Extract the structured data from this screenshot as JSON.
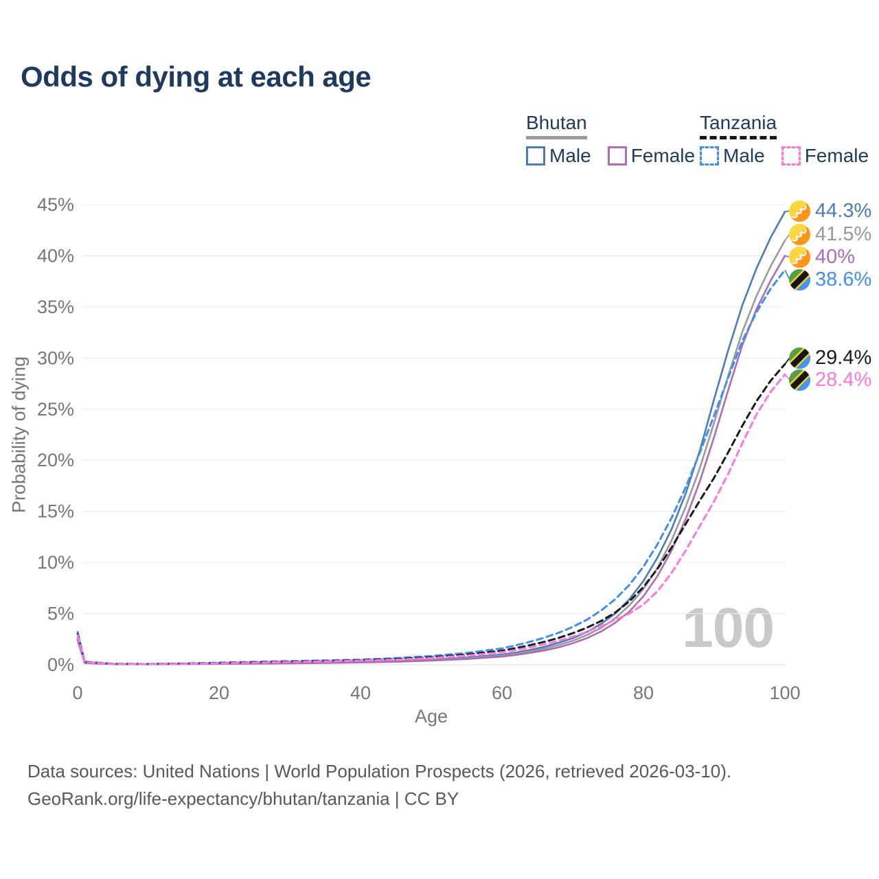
{
  "title": "Odds of dying at each age",
  "legend": {
    "groups": [
      {
        "label": "Bhutan",
        "line_style": "solid",
        "line_color": "#9a9a9a",
        "items": [
          {
            "label": "Male",
            "color": "#4a7db8"
          },
          {
            "label": "Female",
            "color": "#ad6cb5"
          }
        ]
      },
      {
        "label": "Tanzania",
        "line_style": "dashed",
        "line_color": "#161616",
        "items": [
          {
            "label": "Male",
            "color": "#3f8df5"
          },
          {
            "label": "Female",
            "color": "#ff77dd"
          }
        ]
      }
    ]
  },
  "watermark": "100",
  "footer": {
    "line1": "Data sources: United Nations | World Population Prospects (2026, retrieved 2026-03-10).",
    "line2": "GeoRank.org/life-expectancy/bhutan/tanzania | CC BY"
  },
  "chart_data": {
    "type": "line",
    "title": "Odds of dying at each age",
    "xlabel": "Age",
    "ylabel": "Probability of dying",
    "xlim": [
      0,
      100
    ],
    "ylim": [
      0,
      45
    ],
    "grid": true,
    "x_ticks": [
      {
        "value": 0,
        "label": "0"
      },
      {
        "value": 20,
        "label": "20"
      },
      {
        "value": 40,
        "label": "40"
      },
      {
        "value": 60,
        "label": "60"
      },
      {
        "value": 80,
        "label": "80"
      },
      {
        "value": 100,
        "label": "100"
      }
    ],
    "y_ticks": [
      {
        "value": 0,
        "label": "0%"
      },
      {
        "value": 5,
        "label": "5%"
      },
      {
        "value": 10,
        "label": "10%"
      },
      {
        "value": 15,
        "label": "15%"
      },
      {
        "value": 20,
        "label": "20%"
      },
      {
        "value": 25,
        "label": "25%"
      },
      {
        "value": 30,
        "label": "30%"
      },
      {
        "value": 35,
        "label": "35%"
      },
      {
        "value": 40,
        "label": "40%"
      },
      {
        "value": 45,
        "label": "45%"
      }
    ],
    "ages": [
      0,
      1,
      5,
      10,
      15,
      20,
      25,
      30,
      35,
      40,
      45,
      50,
      55,
      60,
      62,
      64,
      66,
      68,
      70,
      72,
      74,
      76,
      78,
      80,
      82,
      84,
      86,
      88,
      90,
      92,
      94,
      96,
      98,
      100
    ],
    "series": [
      {
        "name": "Bhutan Male",
        "country": "bhutan",
        "icon": "bhutan-flag-icon",
        "color": "#4a7db8",
        "dashed": false,
        "end_label": "44.3%",
        "end_value": 44.3,
        "values": [
          2.6,
          0.2,
          0.07,
          0.06,
          0.08,
          0.12,
          0.15,
          0.18,
          0.22,
          0.28,
          0.37,
          0.5,
          0.7,
          1.0,
          1.2,
          1.45,
          1.75,
          2.15,
          2.6,
          3.2,
          4.0,
          5.0,
          6.4,
          8.2,
          10.5,
          13.3,
          16.8,
          21.0,
          26.0,
          30.8,
          35.2,
          38.8,
          41.8,
          44.3
        ]
      },
      {
        "name": "Bhutan",
        "country": "bhutan",
        "icon": "bhutan-flag-icon",
        "color": "#9a9a9a",
        "dashed": false,
        "end_label": "41.5%",
        "end_value": 41.5,
        "values": [
          2.5,
          0.18,
          0.06,
          0.055,
          0.07,
          0.1,
          0.13,
          0.16,
          0.2,
          0.25,
          0.33,
          0.45,
          0.63,
          0.9,
          1.08,
          1.3,
          1.58,
          1.92,
          2.35,
          2.9,
          3.6,
          4.55,
          5.8,
          7.4,
          9.5,
          12.2,
          15.5,
          19.3,
          23.7,
          28.3,
          32.6,
          36.1,
          39.0,
          41.5
        ]
      },
      {
        "name": "Bhutan Female",
        "country": "bhutan",
        "icon": "bhutan-flag-icon",
        "color": "#ad6cb5",
        "dashed": false,
        "end_label": "40%",
        "end_value": 40.0,
        "values": [
          2.4,
          0.17,
          0.055,
          0.05,
          0.06,
          0.09,
          0.11,
          0.14,
          0.17,
          0.22,
          0.29,
          0.4,
          0.56,
          0.8,
          0.96,
          1.16,
          1.4,
          1.7,
          2.1,
          2.6,
          3.25,
          4.1,
          5.2,
          6.7,
          8.7,
          11.2,
          14.3,
          18.0,
          22.3,
          26.9,
          31.3,
          34.8,
          37.6,
          40.0
        ]
      },
      {
        "name": "Tanzania Male",
        "country": "tanzania",
        "icon": "tanzania-flag-icon",
        "color": "#3f8df5",
        "dashed": true,
        "end_label": "38.6%",
        "end_value": 38.6,
        "values": [
          3.2,
          0.3,
          0.09,
          0.08,
          0.12,
          0.2,
          0.28,
          0.35,
          0.42,
          0.5,
          0.65,
          0.85,
          1.15,
          1.6,
          1.9,
          2.25,
          2.65,
          3.12,
          3.7,
          4.4,
          5.3,
          6.4,
          7.8,
          9.6,
          11.8,
          14.4,
          17.4,
          20.8,
          24.4,
          28.1,
          31.7,
          34.5,
          36.8,
          38.6
        ]
      },
      {
        "name": "Tanzania",
        "country": "tanzania",
        "icon": "tanzania-flag-icon",
        "color": "#1a1a1a",
        "dashed": true,
        "end_label": "29.4%",
        "end_value": 29.4,
        "values": [
          3.0,
          0.27,
          0.08,
          0.07,
          0.1,
          0.17,
          0.24,
          0.3,
          0.36,
          0.44,
          0.56,
          0.73,
          1.0,
          1.38,
          1.63,
          1.92,
          2.24,
          2.62,
          3.08,
          3.62,
          4.28,
          5.1,
          6.2,
          7.6,
          9.4,
          11.5,
          13.8,
          16.1,
          18.3,
          20.8,
          23.4,
          25.8,
          27.8,
          29.4
        ]
      },
      {
        "name": "Tanzania Female",
        "country": "tanzania",
        "icon": "tanzania-flag-icon",
        "color": "#ff77dd",
        "dashed": true,
        "end_label": "28.4%",
        "end_value": 28.4,
        "values": [
          2.9,
          0.25,
          0.075,
          0.065,
          0.09,
          0.15,
          0.21,
          0.27,
          0.33,
          0.4,
          0.5,
          0.66,
          0.9,
          1.22,
          1.44,
          1.7,
          2.0,
          2.35,
          2.75,
          3.22,
          3.78,
          4.4,
          5.0,
          5.9,
          7.2,
          9.0,
          11.2,
          13.6,
          16.0,
          18.7,
          21.7,
          24.5,
          26.7,
          28.4
        ]
      }
    ],
    "flag_colors": {
      "bhutan": {
        "yellow": "#ffd63f",
        "orange": "#ff9517",
        "dragon": "#ffffff"
      },
      "tanzania": {
        "green": "#53a044",
        "blue": "#4596ec",
        "yellow": "#ffd21c",
        "black": "#161616"
      }
    }
  }
}
